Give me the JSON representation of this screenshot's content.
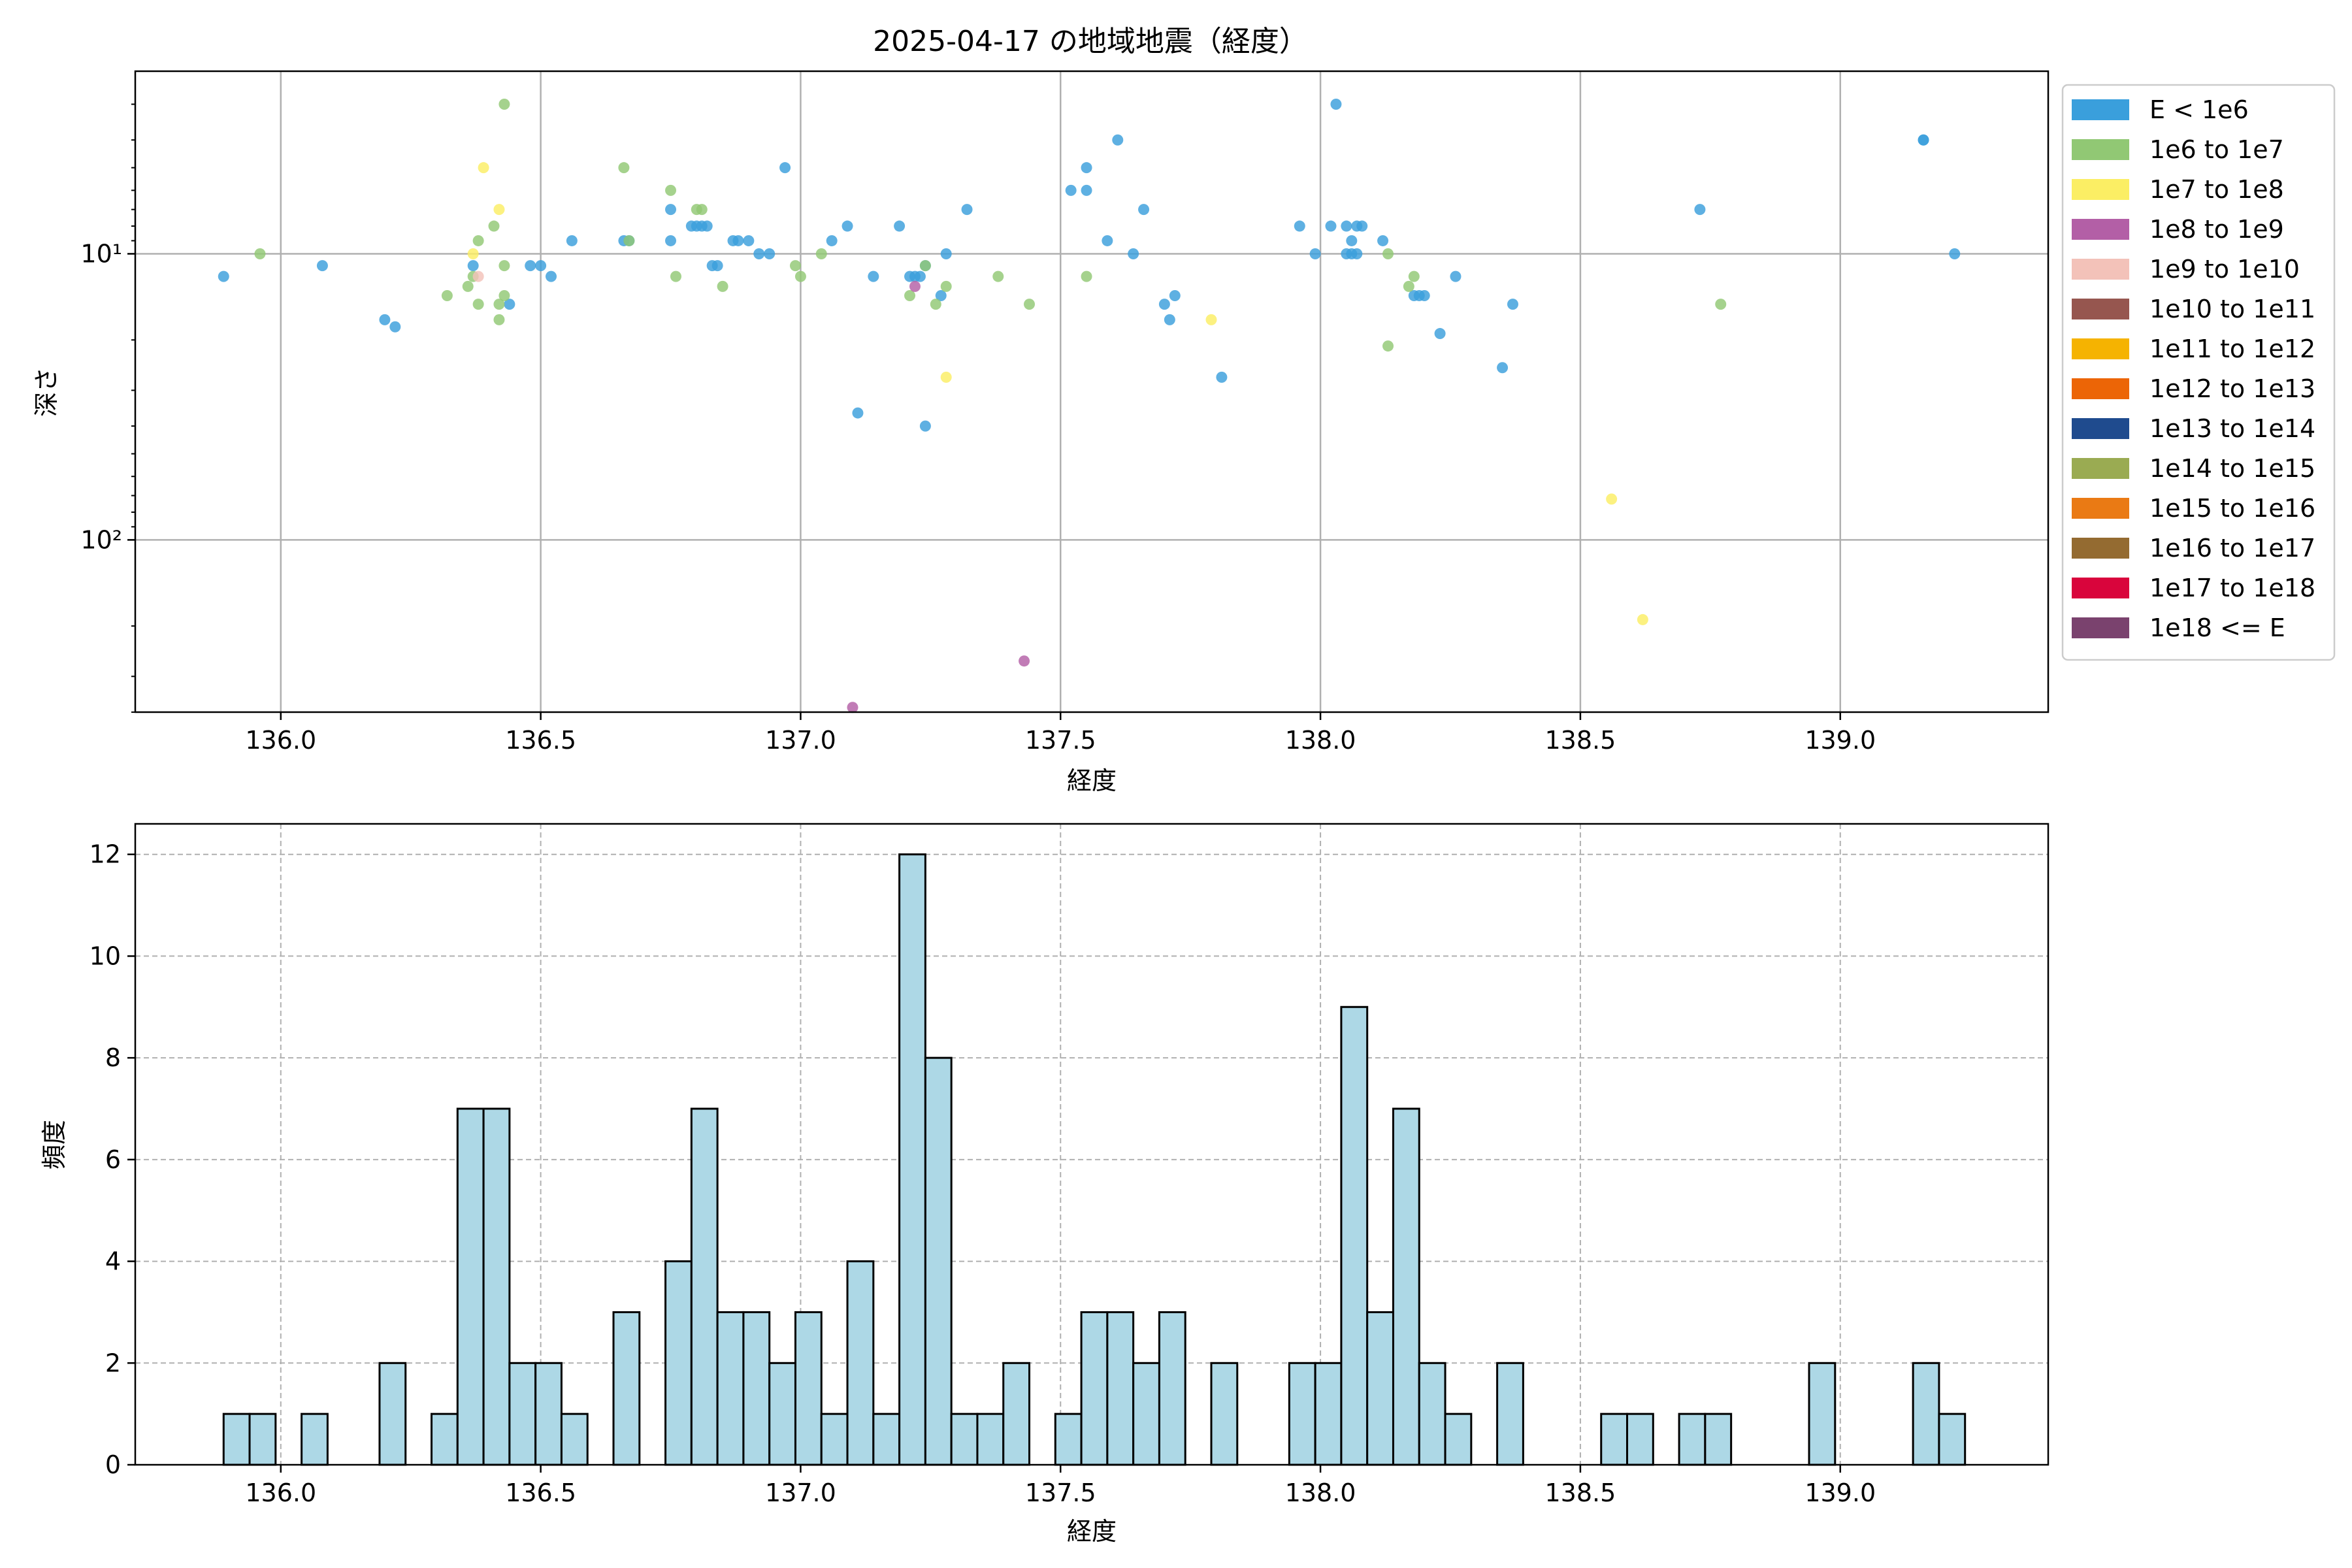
{
  "chart_data": [
    {
      "type": "scatter",
      "title": "2025-04-17 の地域地震（経度）",
      "xlabel": "経度",
      "ylabel": "深さ",
      "xlim": [
        135.72,
        139.4
      ],
      "ylim": [
        400,
        2.3
      ],
      "yscale": "log",
      "y_inverted": true,
      "xticks": [
        136.0,
        136.5,
        137.0,
        137.5,
        138.0,
        138.5,
        139.0
      ],
      "xtick_labels": [
        "136.0",
        "136.5",
        "137.0",
        "137.5",
        "138.0",
        "138.5",
        "139.0"
      ],
      "yticks": [
        10,
        100
      ],
      "ytick_labels": [
        "10¹",
        "10²"
      ],
      "grid": true,
      "legend_position": "outside-right",
      "legend": [
        {
          "label": "E < 1e6",
          "color": "#3a9fdc"
        },
        {
          "label": "1e6 to 1e7",
          "color": "#91c874"
        },
        {
          "label": "1e7 to 1e8",
          "color": "#fbee64"
        },
        {
          "label": "1e8 to 1e9",
          "color": "#b35fa6"
        },
        {
          "label": "1e9 to 1e10",
          "color": "#f3c2b9"
        },
        {
          "label": "1e10 to 1e11",
          "color": "#96564f"
        },
        {
          "label": "1e11 to 1e12",
          "color": "#f5b301"
        },
        {
          "label": "1e12 to 1e13",
          "color": "#ec6506"
        },
        {
          "label": "1e13 to 1e14",
          "color": "#1f4b8e"
        },
        {
          "label": "1e14 to 1e15",
          "color": "#9aab52"
        },
        {
          "label": "1e15 to 1e16",
          "color": "#ea7a14"
        },
        {
          "label": "1e16 to 1e17",
          "color": "#946b31"
        },
        {
          "label": "1e17 to 1e18",
          "color": "#d9053c"
        },
        {
          "label": "1e18 <= E",
          "color": "#7a426e"
        }
      ],
      "series": [
        {
          "name": "E < 1e6",
          "color": "#3a9fdc",
          "points": [
            [
              135.89,
              12
            ],
            [
              136.08,
              11
            ],
            [
              136.2,
              17
            ],
            [
              136.22,
              18
            ],
            [
              136.37,
              11
            ],
            [
              136.44,
              15
            ],
            [
              136.48,
              11
            ],
            [
              136.5,
              11
            ],
            [
              136.52,
              12
            ],
            [
              136.56,
              9
            ],
            [
              136.66,
              9
            ],
            [
              136.67,
              9
            ],
            [
              136.75,
              7
            ],
            [
              136.75,
              9
            ],
            [
              136.79,
              8
            ],
            [
              136.8,
              8
            ],
            [
              136.81,
              8
            ],
            [
              136.82,
              8
            ],
            [
              136.83,
              11
            ],
            [
              136.84,
              11
            ],
            [
              136.87,
              9
            ],
            [
              136.88,
              9
            ],
            [
              136.9,
              9
            ],
            [
              136.92,
              10
            ],
            [
              136.94,
              10
            ],
            [
              136.97,
              5
            ],
            [
              137.06,
              9
            ],
            [
              137.09,
              8
            ],
            [
              137.11,
              36
            ],
            [
              137.14,
              12
            ],
            [
              137.19,
              8
            ],
            [
              137.21,
              12
            ],
            [
              137.22,
              12
            ],
            [
              137.23,
              12
            ],
            [
              137.24,
              11
            ],
            [
              137.24,
              40
            ],
            [
              137.27,
              14
            ],
            [
              137.28,
              10
            ],
            [
              137.32,
              7
            ],
            [
              137.52,
              6
            ],
            [
              137.55,
              5
            ],
            [
              137.55,
              6
            ],
            [
              137.59,
              9
            ],
            [
              137.61,
              4
            ],
            [
              137.64,
              10
            ],
            [
              137.66,
              7
            ],
            [
              137.7,
              15
            ],
            [
              137.71,
              17
            ],
            [
              137.72,
              14
            ],
            [
              137.81,
              27
            ],
            [
              137.96,
              8
            ],
            [
              137.99,
              10
            ],
            [
              138.02,
              8
            ],
            [
              138.03,
              3
            ],
            [
              138.05,
              8
            ],
            [
              138.05,
              10
            ],
            [
              138.06,
              10
            ],
            [
              138.06,
              9
            ],
            [
              138.07,
              10
            ],
            [
              138.07,
              8
            ],
            [
              138.08,
              8
            ],
            [
              138.12,
              9
            ],
            [
              138.18,
              14
            ],
            [
              138.19,
              14
            ],
            [
              138.2,
              14
            ],
            [
              138.23,
              19
            ],
            [
              138.26,
              12
            ],
            [
              138.35,
              25
            ],
            [
              138.37,
              15
            ],
            [
              138.73,
              7
            ],
            [
              139.16,
              4
            ],
            [
              139.16,
              4
            ],
            [
              139.22,
              10
            ]
          ]
        },
        {
          "name": "1e6 to 1e7",
          "color": "#91c874",
          "points": [
            [
              135.96,
              10
            ],
            [
              136.32,
              14
            ],
            [
              136.36,
              13
            ],
            [
              136.37,
              12
            ],
            [
              136.38,
              9
            ],
            [
              136.38,
              15
            ],
            [
              136.41,
              8
            ],
            [
              136.42,
              15
            ],
            [
              136.42,
              17
            ],
            [
              136.43,
              3
            ],
            [
              136.43,
              14
            ],
            [
              136.43,
              11
            ],
            [
              136.66,
              5
            ],
            [
              136.67,
              9
            ],
            [
              136.75,
              6
            ],
            [
              136.76,
              12
            ],
            [
              136.8,
              7
            ],
            [
              136.81,
              7
            ],
            [
              136.85,
              13
            ],
            [
              136.99,
              11
            ],
            [
              137.0,
              12
            ],
            [
              137.04,
              10
            ],
            [
              137.21,
              14
            ],
            [
              137.24,
              11
            ],
            [
              137.26,
              15
            ],
            [
              137.28,
              13
            ],
            [
              137.38,
              12
            ],
            [
              137.44,
              15
            ],
            [
              137.55,
              12
            ],
            [
              138.13,
              10
            ],
            [
              138.13,
              21
            ],
            [
              138.17,
              13
            ],
            [
              138.18,
              12
            ],
            [
              138.77,
              15
            ]
          ]
        },
        {
          "name": "1e7 to 1e8",
          "color": "#fbee64",
          "points": [
            [
              136.37,
              10
            ],
            [
              136.39,
              5
            ],
            [
              136.42,
              7
            ],
            [
              137.28,
              27
            ],
            [
              137.79,
              17
            ],
            [
              138.56,
              72
            ],
            [
              138.62,
              190
            ]
          ]
        },
        {
          "name": "1e8 to 1e9",
          "color": "#b35fa6",
          "points": [
            [
              137.22,
              13
            ],
            [
              137.43,
              265
            ],
            [
              137.1,
              385
            ]
          ]
        },
        {
          "name": "1e9 to 1e10",
          "color": "#f3c2b9",
          "points": [
            [
              136.38,
              12
            ]
          ]
        }
      ]
    },
    {
      "type": "bar",
      "subtype": "histogram",
      "xlabel": "経度",
      "ylabel": "頻度",
      "xlim": [
        135.72,
        139.4
      ],
      "ylim": [
        0,
        12.6
      ],
      "xticks": [
        136.0,
        136.5,
        137.0,
        137.5,
        138.0,
        138.5,
        139.0
      ],
      "xtick_labels": [
        "136.0",
        "136.5",
        "137.0",
        "137.5",
        "138.0",
        "138.5",
        "139.0"
      ],
      "yticks": [
        0,
        2,
        4,
        6,
        8,
        10,
        12
      ],
      "ytick_labels": [
        "0",
        "2",
        "4",
        "6",
        "8",
        "10",
        "12"
      ],
      "grid": true,
      "bar_color": "#add8e6",
      "edge_color": "#000000",
      "bin_start": 135.89,
      "bin_width": 0.05,
      "counts": [
        1,
        1,
        0,
        1,
        0,
        0,
        2,
        0,
        1,
        7,
        7,
        2,
        2,
        1,
        0,
        3,
        0,
        4,
        7,
        3,
        3,
        2,
        3,
        1,
        4,
        1,
        12,
        8,
        1,
        1,
        2,
        0,
        1,
        3,
        3,
        2,
        3,
        0,
        2,
        0,
        0,
        2,
        2,
        9,
        3,
        7,
        2,
        1,
        0,
        2,
        0,
        0,
        0,
        1,
        1,
        0,
        1,
        1,
        0,
        0,
        0,
        2,
        0,
        0,
        0,
        2,
        1
      ]
    }
  ]
}
